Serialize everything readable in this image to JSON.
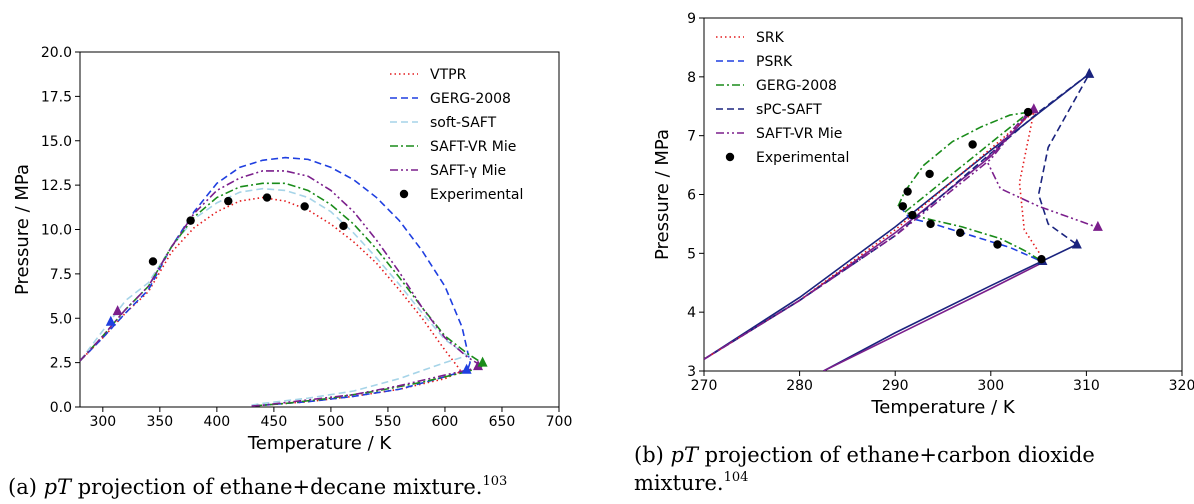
{
  "chart_data": [
    {
      "type": "line",
      "xlabel": "Temperature / K",
      "ylabel": "Pressure / MPa",
      "xlim": [
        280,
        700
      ],
      "ylim": [
        0,
        20
      ],
      "xticks": [
        "300",
        "350",
        "400",
        "450",
        "500",
        "550",
        "600",
        "650",
        "700"
      ],
      "yticks": [
        "0.0",
        "2.5",
        "5.0",
        "7.5",
        "10.0",
        "12.5",
        "15.0",
        "17.5",
        "20.0"
      ],
      "grid": false,
      "legend_position": "top-right",
      "caption": {
        "prefix": "(a) ",
        "math": "pT",
        "text": " projection of ethane+decane mixture.",
        "ref": "103"
      },
      "series": [
        {
          "name": "VTPR",
          "color": "#e31a1c",
          "dash": "dotted",
          "x": [
            280,
            300,
            320,
            340,
            360,
            380,
            400,
            420,
            440,
            460,
            480,
            500,
            520,
            540,
            560,
            580,
            600,
            612,
            614,
            600,
            560,
            520,
            480,
            440,
            430
          ],
          "y": [
            2.6,
            3.9,
            5.3,
            6.5,
            8.7,
            10.1,
            11.0,
            11.6,
            11.8,
            11.6,
            11.1,
            10.3,
            9.3,
            8.1,
            6.6,
            5.0,
            3.2,
            2.2,
            2.0,
            1.6,
            1.0,
            0.6,
            0.3,
            0.1,
            0.05
          ]
        },
        {
          "name": "GERG-2008",
          "color": "#1f3fe0",
          "dash": "dashed",
          "x": [
            280,
            300,
            320,
            340,
            360,
            380,
            400,
            420,
            440,
            460,
            480,
            500,
            520,
            540,
            560,
            580,
            600,
            615,
            622,
            620,
            600,
            560,
            520,
            480,
            440,
            430
          ],
          "y": [
            2.6,
            3.9,
            5.3,
            6.6,
            9.0,
            11.0,
            12.6,
            13.5,
            13.9,
            14.05,
            13.95,
            13.5,
            12.8,
            11.8,
            10.5,
            8.8,
            6.8,
            4.5,
            2.5,
            2.1,
            1.7,
            1.0,
            0.6,
            0.3,
            0.1,
            0.05
          ]
        },
        {
          "name": "soft-SAFT",
          "color": "#a6d4e8",
          "dash": "dashed",
          "x": [
            280,
            300,
            320,
            340,
            360,
            380,
            400,
            420,
            440,
            460,
            480,
            500,
            520,
            540,
            560,
            580,
            600,
            615,
            620,
            600,
            560,
            520,
            480,
            440,
            430
          ],
          "y": [
            2.6,
            4.3,
            6.0,
            7.0,
            9.0,
            10.6,
            11.5,
            12.1,
            12.3,
            12.2,
            11.8,
            11.0,
            9.8,
            8.4,
            6.9,
            5.3,
            3.8,
            3.1,
            2.9,
            2.5,
            1.6,
            0.9,
            0.5,
            0.2,
            0.1
          ]
        },
        {
          "name": "SAFT-VR Mie",
          "color": "#1a8c1a",
          "dash": "dashdot",
          "x": [
            280,
            300,
            320,
            340,
            360,
            380,
            400,
            420,
            440,
            460,
            480,
            500,
            520,
            540,
            560,
            580,
            600,
            620,
            632,
            633,
            620,
            580,
            540,
            500,
            460,
            440,
            430
          ],
          "y": [
            2.6,
            4.0,
            5.5,
            6.8,
            9.0,
            10.7,
            11.8,
            12.4,
            12.6,
            12.6,
            12.2,
            11.4,
            10.3,
            8.9,
            7.3,
            5.6,
            4.0,
            3.0,
            2.5,
            2.3,
            2.0,
            1.4,
            0.9,
            0.5,
            0.2,
            0.1,
            0.05
          ]
        },
        {
          "name": "SAFT-γ Mie",
          "color": "#7b1f8c",
          "dash": "dashdotdot",
          "x": [
            280,
            300,
            320,
            340,
            360,
            380,
            400,
            420,
            440,
            460,
            480,
            500,
            520,
            540,
            560,
            580,
            600,
            620,
            630,
            628,
            600,
            560,
            520,
            480,
            440,
            430
          ],
          "y": [
            2.6,
            4.0,
            5.5,
            6.8,
            9.0,
            10.9,
            12.2,
            12.9,
            13.3,
            13.3,
            13.0,
            12.2,
            11.0,
            9.4,
            7.6,
            5.6,
            3.9,
            2.8,
            2.4,
            2.2,
            1.8,
            1.2,
            0.7,
            0.4,
            0.1,
            0.05
          ]
        }
      ],
      "experimental": {
        "name": "Experimental",
        "x": [
          344,
          377,
          410,
          444,
          477,
          511
        ],
        "y": [
          8.2,
          10.5,
          11.6,
          11.8,
          11.3,
          10.2
        ]
      },
      "critical_markers": [
        {
          "x": 307,
          "y": 4.8,
          "color": "#1f3fe0"
        },
        {
          "x": 313,
          "y": 5.4,
          "color": "#7b1f8c"
        },
        {
          "x": 619,
          "y": 2.1,
          "color": "#1f3fe0"
        },
        {
          "x": 629,
          "y": 2.3,
          "color": "#7b1f8c"
        },
        {
          "x": 633,
          "y": 2.5,
          "color": "#1a8c1a"
        }
      ]
    },
    {
      "type": "line",
      "xlabel": "Temperature / K",
      "ylabel": "Pressure / MPa",
      "xlim": [
        270,
        320
      ],
      "ylim": [
        3,
        9
      ],
      "xticks": [
        "270",
        "280",
        "290",
        "300",
        "310",
        "320"
      ],
      "yticks": [
        "3",
        "4",
        "5",
        "6",
        "7",
        "8",
        "9"
      ],
      "grid": false,
      "legend_position": "top-left",
      "caption": {
        "prefix": "(b) ",
        "math": "pT",
        "text": " projection of ethane+carbon dioxide mixture.",
        "ref": "104"
      },
      "series": [
        {
          "name": "SRK",
          "color": "#e31a1c",
          "dash": "dotted",
          "x": [
            270,
            280,
            290,
            298,
            303,
            304.5,
            303,
            303.5,
            305.5
          ],
          "y": [
            3.2,
            4.2,
            5.4,
            6.5,
            7.2,
            7.4,
            6.2,
            5.4,
            4.9
          ]
        },
        {
          "name": "PSRK",
          "color": "#1f3fe0",
          "dash": "dashed",
          "x": [
            290.5,
            291.5,
            294,
            298,
            302,
            305.5
          ],
          "y": [
            5.8,
            5.6,
            5.5,
            5.3,
            5.1,
            4.85
          ]
        },
        {
          "name": "GERG-2008",
          "color": "#1a8c1a",
          "dash": "dashdot",
          "x": [
            290.3,
            291,
            293,
            296,
            299,
            302,
            304,
            291,
            293,
            297,
            301,
            303.5,
            305.5
          ],
          "y": [
            5.8,
            6.05,
            6.5,
            6.9,
            7.15,
            7.35,
            7.4,
            5.7,
            5.6,
            5.45,
            5.25,
            5.05,
            4.85
          ]
        },
        {
          "name": "sPC-SAFT",
          "color": "#1a237e",
          "dash": "dashed",
          "x": [
            270,
            280,
            290,
            300,
            305,
            310.3,
            306,
            305,
            306,
            309
          ],
          "y": [
            3.2,
            4.2,
            5.3,
            6.7,
            7.4,
            8.05,
            6.8,
            6.0,
            5.5,
            5.15
          ]
        },
        {
          "name": "SAFT-VR Mie",
          "color": "#7b1f8c",
          "dash": "dashdotdot",
          "x": [
            270,
            280,
            290,
            300,
            304.5,
            299.5,
            301,
            305,
            311
          ],
          "y": [
            3.2,
            4.2,
            5.3,
            6.6,
            7.5,
            6.6,
            6.1,
            5.8,
            5.45
          ]
        }
      ],
      "solid_envelopes": [
        {
          "color": "#1a237e",
          "x": [
            270,
            280,
            290,
            300,
            310.3
          ],
          "y": [
            3.2,
            4.25,
            5.45,
            6.75,
            8.05
          ]
        },
        {
          "color": "#7b1f8c",
          "x": [
            270,
            280,
            290,
            300,
            304.5
          ],
          "y": [
            3.2,
            4.2,
            5.35,
            6.65,
            7.45
          ]
        },
        {
          "color": "#1a237e",
          "x": [
            282.5,
            290,
            300,
            309
          ],
          "y": [
            3.0,
            3.65,
            4.45,
            5.15
          ]
        },
        {
          "color": "#7b1f8c",
          "x": [
            282.5,
            290,
            300,
            305.5
          ],
          "y": [
            3.0,
            3.6,
            4.4,
            4.85
          ]
        }
      ],
      "experimental": {
        "name": "Experimental",
        "x": [
          290.8,
          291.3,
          291.8,
          293.6,
          293.7,
          296.8,
          298.1,
          300.7,
          303.9,
          305.3
        ],
        "y": [
          5.8,
          6.05,
          5.65,
          6.35,
          5.5,
          5.35,
          6.85,
          5.15,
          7.4,
          4.9
        ]
      },
      "critical_markers": [
        {
          "x": 304.5,
          "y": 7.45,
          "color": "#7b1f8c"
        },
        {
          "x": 310.3,
          "y": 8.05,
          "color": "#1a237e"
        },
        {
          "x": 311.2,
          "y": 5.45,
          "color": "#7b1f8c"
        },
        {
          "x": 309.0,
          "y": 5.15,
          "color": "#1a237e"
        },
        {
          "x": 305.4,
          "y": 4.87,
          "color": "#1a237e"
        }
      ]
    }
  ]
}
